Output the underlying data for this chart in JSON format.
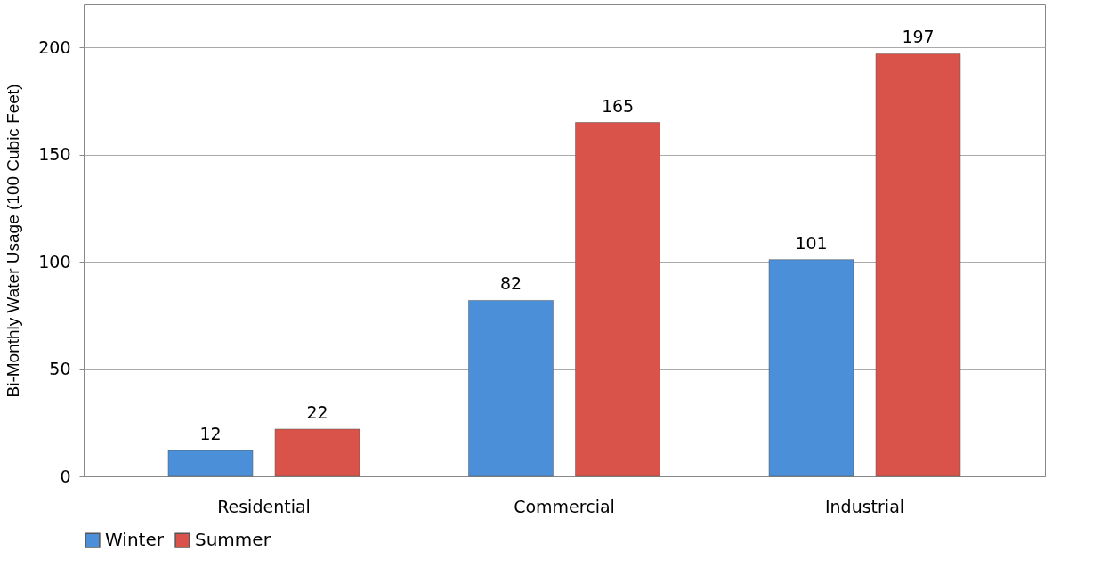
{
  "chart_data": {
    "type": "bar",
    "ylabel": "Bi-Monthly Water Usage (100 Cubic Feet)",
    "categories": [
      "Residential",
      "Commercial",
      "Industrial"
    ],
    "series": [
      {
        "name": "Winter",
        "color": "#4a8fd8",
        "values": [
          12,
          82,
          101
        ]
      },
      {
        "name": "Summer",
        "color": "#d9534a",
        "values": [
          22,
          165,
          197
        ]
      }
    ],
    "ylim": [
      0,
      220
    ],
    "yticks": [
      0,
      50,
      100,
      150,
      200
    ],
    "grid": "y",
    "legend": "bottom",
    "data_labels": true
  }
}
